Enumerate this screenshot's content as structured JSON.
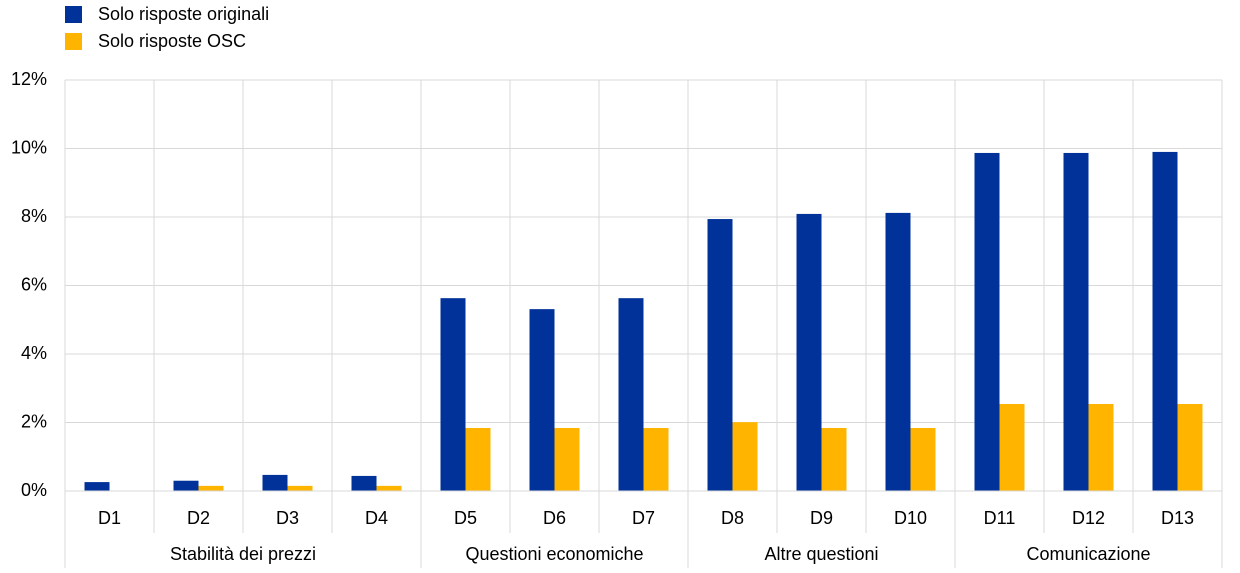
{
  "chart_data": {
    "type": "bar",
    "legend": "top-left",
    "grid": true,
    "groups": [
      {
        "name": "Stabilità dei prezzi",
        "categories": [
          "D1",
          "D2",
          "D3",
          "D4"
        ]
      },
      {
        "name": "Questioni economiche",
        "categories": [
          "D5",
          "D6",
          "D7"
        ]
      },
      {
        "name": "Altre questioni",
        "categories": [
          "D8",
          "D9",
          "D10"
        ]
      },
      {
        "name": "Comunicazione",
        "categories": [
          "D11",
          "D12",
          "D13"
        ]
      }
    ],
    "series": [
      {
        "name": "Solo risposte originali",
        "color": "#003299",
        "values": [
          0.26,
          0.3,
          0.47,
          0.44,
          5.63,
          5.31,
          5.63,
          7.94,
          8.09,
          8.12,
          9.87,
          9.87,
          9.9
        ]
      },
      {
        "name": "Solo risposte OSC",
        "color": "#ffb400",
        "values": [
          0,
          0.15,
          0.15,
          0.15,
          1.84,
          1.84,
          1.84,
          2.01,
          1.84,
          1.84,
          2.54,
          2.54,
          2.54
        ]
      }
    ],
    "ylim": [
      0,
      12
    ],
    "yticks": [
      {
        "value": 0,
        "label": "0%"
      },
      {
        "value": 2,
        "label": "2%"
      },
      {
        "value": 4,
        "label": "4%"
      },
      {
        "value": 6,
        "label": "6%"
      },
      {
        "value": 8,
        "label": "8%"
      },
      {
        "value": 10,
        "label": "10%"
      },
      {
        "value": 12,
        "label": "12%"
      }
    ]
  }
}
